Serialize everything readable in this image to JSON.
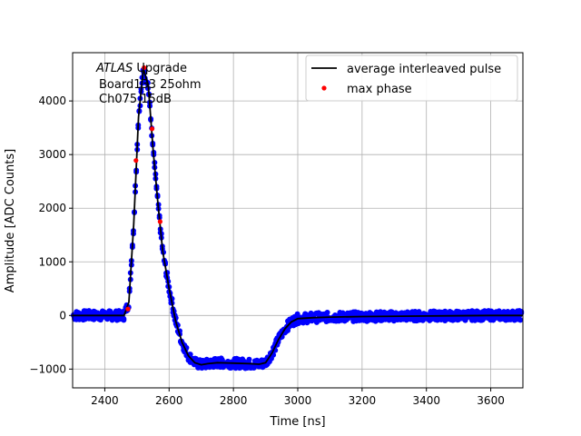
{
  "chart_data": {
    "type": "scatter",
    "title": "",
    "xlabel": "Time [ns]",
    "ylabel": "Amplitude [ADC Counts]",
    "xlim": [
      2300,
      3700
    ],
    "ylim": [
      -1350,
      4900
    ],
    "xticks": [
      2400,
      2600,
      2800,
      3000,
      3200,
      3400,
      3600
    ],
    "yticks": [
      -1000,
      0,
      1000,
      2000,
      3000,
      4000
    ],
    "grid": true,
    "legend_position": "top-right",
    "annotation": {
      "italic": "ATLAS",
      "line1": " Upgrade",
      "line2": "Board133 25ohm",
      "line3": "Ch075 15dB"
    },
    "series": [
      {
        "name": "",
        "kind": "scatter-band",
        "color": "#0000ff",
        "x": [
          2300,
          2460,
          2475,
          2490,
          2505,
          2520,
          2535,
          2550,
          2565,
          2580,
          2600,
          2620,
          2640,
          2660,
          2680,
          2700,
          2720,
          2750,
          2800,
          2850,
          2880,
          2900,
          2920,
          2940,
          2960,
          2980,
          3000,
          3050,
          3100,
          3200,
          3400,
          3600,
          3700
        ],
        "y": [
          0,
          0,
          250,
          1700,
          3700,
          4600,
          4300,
          3100,
          2100,
          1200,
          500,
          -100,
          -500,
          -750,
          -880,
          -920,
          -900,
          -880,
          -890,
          -900,
          -910,
          -880,
          -700,
          -450,
          -250,
          -120,
          -60,
          -40,
          -30,
          -20,
          -10,
          0,
          0
        ],
        "band": 90
      },
      {
        "name": "average interleaved pulse",
        "kind": "line",
        "color": "#000000",
        "x": [
          2300,
          2460,
          2475,
          2490,
          2505,
          2520,
          2535,
          2550,
          2565,
          2580,
          2600,
          2620,
          2640,
          2660,
          2680,
          2700,
          2720,
          2750,
          2800,
          2850,
          2880,
          2900,
          2920,
          2940,
          2960,
          2980,
          3000,
          3050,
          3100,
          3200,
          3400,
          3600,
          3700
        ],
        "y": [
          0,
          0,
          250,
          1700,
          3700,
          4600,
          4300,
          3100,
          2100,
          1200,
          500,
          -100,
          -500,
          -750,
          -880,
          -920,
          -900,
          -880,
          -890,
          -900,
          -910,
          -880,
          -700,
          -450,
          -250,
          -120,
          -60,
          -40,
          -30,
          -20,
          -10,
          0,
          0
        ]
      },
      {
        "name": "max phase",
        "kind": "points",
        "color": "#ff0000",
        "x": [
          2472,
          2497,
          2522,
          2547,
          2572
        ],
        "y": [
          120,
          2890,
          4620,
          3480,
          1750
        ]
      }
    ]
  }
}
